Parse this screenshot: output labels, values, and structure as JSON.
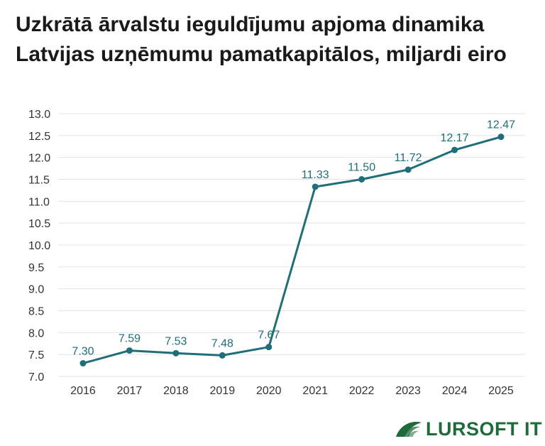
{
  "title": "Uzkrātā ārvalstu ieguldījumu apjoma dinamika Latvijas uzņēmumu pamatkapitālos, miljardi eiro",
  "brand": {
    "name": "LURSOFT IT",
    "icon": "lursoft-leaf-icon",
    "color": "#1f6b3a"
  },
  "chart_data": {
    "type": "line",
    "title": "Uzkrātā ārvalstu ieguldījumu apjoma dinamika Latvijas uzņēmumu pamatkapitālos, miljardi eiro",
    "x": [
      "2016",
      "2017",
      "2018",
      "2019",
      "2020",
      "2021",
      "2022",
      "2023",
      "2024",
      "2025"
    ],
    "series": [
      {
        "values": [
          7.3,
          7.59,
          7.53,
          7.48,
          7.67,
          11.33,
          11.5,
          11.72,
          12.17,
          12.47
        ],
        "color": "#1f6f78"
      }
    ],
    "labels": [
      "7.30",
      "7.59",
      "7.53",
      "7.48",
      "7.67",
      "11.33",
      "11.50",
      "11.72",
      "12.17",
      "12.47"
    ],
    "yticks": [
      "7.0",
      "7.5",
      "8.0",
      "8.5",
      "9.0",
      "9.5",
      "10.0",
      "10.5",
      "11.0",
      "11.5",
      "12.0",
      "12.5",
      "13.0"
    ],
    "ylim": [
      7.0,
      13.0
    ],
    "grid": true,
    "legend": "none",
    "xlabel": "",
    "ylabel": ""
  }
}
